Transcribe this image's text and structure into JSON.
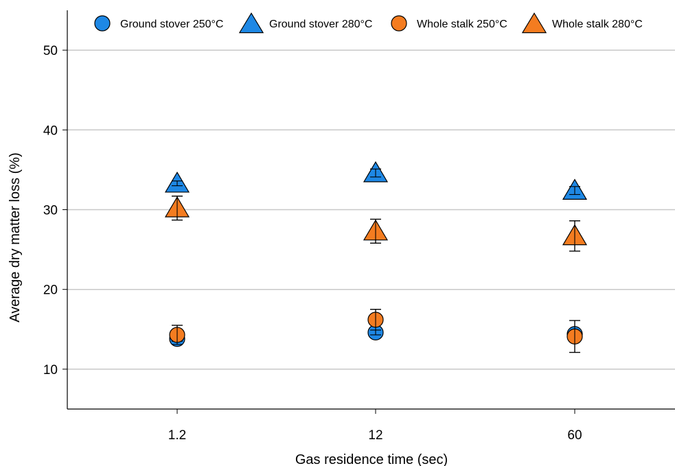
{
  "chart_data": {
    "type": "scatter",
    "title": "",
    "xlabel": "Gas residence time (sec)",
    "ylabel": "Average dry matter loss (%)",
    "categories": [
      "1.2",
      "12",
      "60"
    ],
    "ylim": [
      5,
      55
    ],
    "yticks": [
      10,
      20,
      30,
      40,
      50
    ],
    "grid": "horizontal",
    "legend_position": "top",
    "series": [
      {
        "name": "Ground stover 250°C",
        "marker": "circle",
        "color": "#1e88e5",
        "values": [
          13.8,
          14.6,
          14.4
        ],
        "err_low": [
          0.3,
          0.3,
          0.3
        ],
        "err_high": [
          0.3,
          0.3,
          0.3
        ]
      },
      {
        "name": "Ground stover 280°C",
        "marker": "triangle",
        "color": "#1e88e5",
        "values": [
          33.3,
          34.6,
          32.4
        ],
        "err_low": [
          0.3,
          0.5,
          0.5
        ],
        "err_high": [
          0.3,
          0.5,
          0.5
        ]
      },
      {
        "name": "Whole stalk 250°C",
        "marker": "circle",
        "color": "#f47c20",
        "values": [
          14.3,
          16.2,
          14.1
        ],
        "err_low": [
          1.2,
          1.3,
          2.0
        ],
        "err_high": [
          1.2,
          1.3,
          2.0
        ]
      },
      {
        "name": "Whole stalk 280°C",
        "marker": "triangle",
        "color": "#f47c20",
        "values": [
          30.2,
          27.3,
          26.7
        ],
        "err_low": [
          1.5,
          1.5,
          1.9
        ],
        "err_high": [
          1.5,
          1.5,
          1.9
        ]
      }
    ]
  }
}
